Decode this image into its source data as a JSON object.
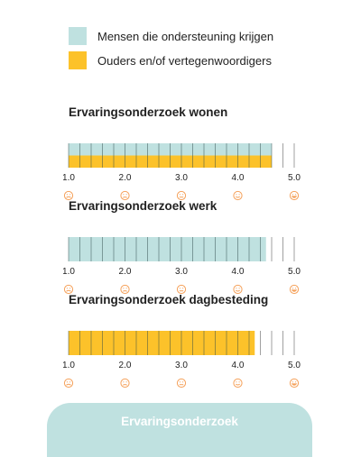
{
  "legend": [
    {
      "label": "Mensen die ondersteuning krijgen",
      "color": "#bfe1e0"
    },
    {
      "label": "Ouders en/of vertegenwoordigers",
      "color": "#fcc22a"
    }
  ],
  "chart_data": [
    {
      "type": "bar",
      "title": "Ervaringsonderzoek wonen",
      "xlim": [
        1.0,
        5.0
      ],
      "ticks": [
        "1.0",
        "2.0",
        "3.0",
        "4.0",
        "5.0"
      ],
      "series": [
        {
          "name": "Mensen die ondersteuning krijgen",
          "value": 4.6
        },
        {
          "name": "Ouders en/of vertegenwoordigers",
          "value": 4.6
        }
      ]
    },
    {
      "type": "bar",
      "title": "Ervaringsonderzoek werk",
      "xlim": [
        1.0,
        5.0
      ],
      "ticks": [
        "1.0",
        "2.0",
        "3.0",
        "4.0",
        "5.0"
      ],
      "series": [
        {
          "name": "Mensen die ondersteuning krijgen",
          "value": 4.5
        }
      ]
    },
    {
      "type": "bar",
      "title": "Ervaringsonderzoek dagbesteding",
      "xlim": [
        1.0,
        5.0
      ],
      "ticks": [
        "1.0",
        "2.0",
        "3.0",
        "4.0",
        "5.0"
      ],
      "series": [
        {
          "name": "Ouders en/of vertegenwoordigers",
          "value": 4.3
        }
      ]
    }
  ],
  "tick_icons": [
    "very-sad-face-icon",
    "sad-face-icon",
    "neutral-face-icon",
    "happy-face-icon",
    "very-happy-face-icon"
  ],
  "icon_color": "#f5a15a",
  "cta": {
    "label": "Ervaringsonderzoek"
  }
}
